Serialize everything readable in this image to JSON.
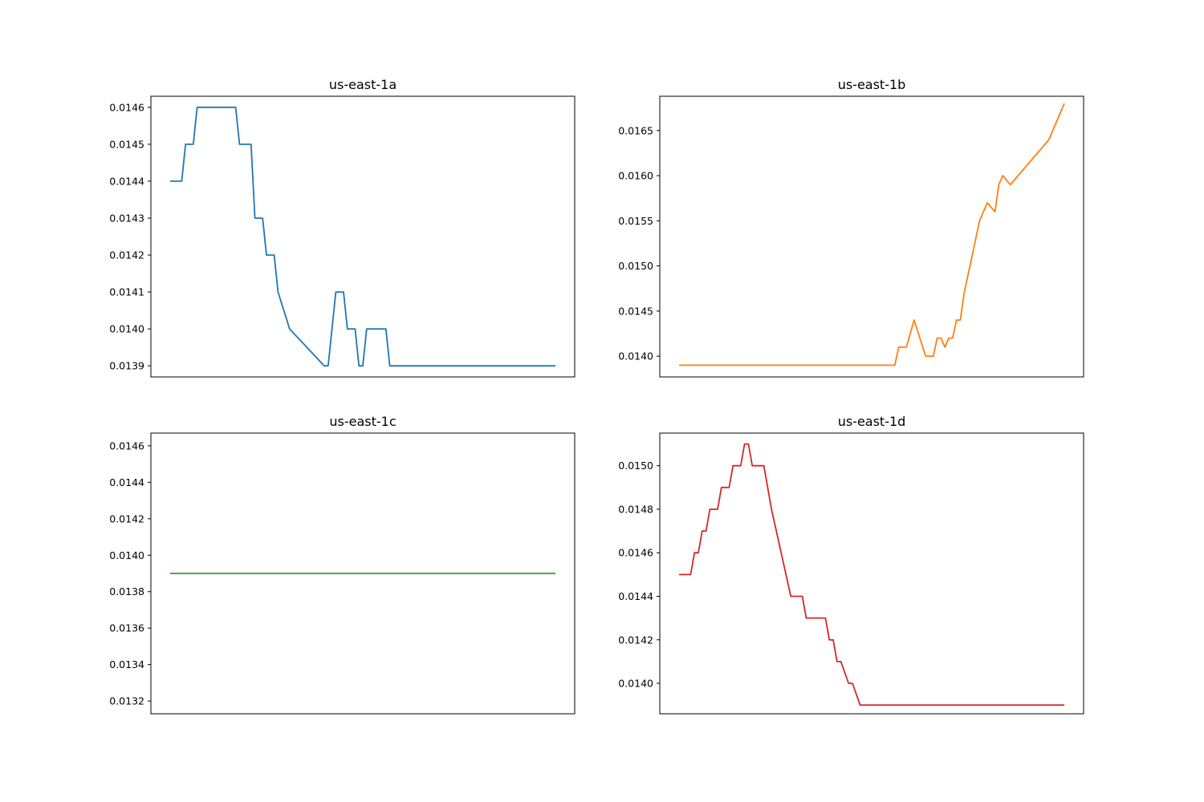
{
  "chart_data": [
    {
      "type": "line",
      "title": "us-east-1a",
      "xlabel": "",
      "ylabel": "",
      "x_ticks_visible": false,
      "ylim": [
        0.01387,
        0.01463
      ],
      "yticks": [
        "0.0139",
        "0.0140",
        "0.0141",
        "0.0142",
        "0.0143",
        "0.0144",
        "0.0145",
        "0.0146"
      ],
      "color": "#1f77b4",
      "series": [
        {
          "x": [
            0,
            3,
            4,
            6,
            7,
            11,
            14,
            17,
            18,
            19,
            20,
            21,
            22,
            24,
            25,
            27,
            28,
            31,
            40,
            41,
            42,
            43,
            45,
            46,
            48,
            49,
            50,
            51,
            56,
            57,
            65,
            76,
            100
          ],
          "values": [
            0.0144,
            0.0144,
            0.0145,
            0.0145,
            0.0146,
            0.0146,
            0.0146,
            0.0146,
            0.0145,
            0.0145,
            0.0145,
            0.0145,
            0.0143,
            0.0143,
            0.0142,
            0.0142,
            0.0141,
            0.014,
            0.0139,
            0.0139,
            0.014,
            0.0141,
            0.0141,
            0.014,
            0.014,
            0.0139,
            0.0139,
            0.014,
            0.014,
            0.0139,
            0.0139,
            0.0139,
            0.0139
          ]
        }
      ]
    },
    {
      "type": "line",
      "title": "us-east-1b",
      "xlabel": "",
      "ylabel": "",
      "x_ticks_visible": false,
      "ylim": [
        0.01377,
        0.01688
      ],
      "yticks": [
        "0.0140",
        "0.0145",
        "0.0150",
        "0.0155",
        "0.0160",
        "0.0165"
      ],
      "color": "#ff7f0e",
      "series": [
        {
          "x": [
            0,
            56,
            57,
            58,
            59,
            61,
            64,
            66,
            67,
            68,
            69,
            70,
            71,
            72,
            73,
            74,
            75,
            76,
            77,
            78,
            80,
            82,
            83,
            84,
            86,
            88,
            90,
            92,
            94,
            96,
            98,
            100
          ],
          "values": [
            0.0139,
            0.0139,
            0.0141,
            0.0141,
            0.0141,
            0.0144,
            0.014,
            0.014,
            0.0142,
            0.0142,
            0.0141,
            0.0142,
            0.0142,
            0.0144,
            0.0144,
            0.0147,
            0.0149,
            0.0151,
            0.0153,
            0.0155,
            0.0157,
            0.0156,
            0.0159,
            0.016,
            0.0159,
            0.016,
            0.0161,
            0.0162,
            0.0163,
            0.0164,
            0.0166,
            0.0168
          ]
        }
      ]
    },
    {
      "type": "line",
      "title": "us-east-1c",
      "xlabel": "",
      "ylabel": "",
      "x_ticks_visible": false,
      "ylim": [
        0.01313,
        0.01467
      ],
      "yticks": [
        "0.0132",
        "0.0134",
        "0.0136",
        "0.0138",
        "0.0140",
        "0.0142",
        "0.0144",
        "0.0146"
      ],
      "color": "#2ca02c",
      "series": [
        {
          "x": [
            0,
            100
          ],
          "values": [
            0.0139,
            0.0139
          ]
        }
      ]
    },
    {
      "type": "line",
      "title": "us-east-1d",
      "xlabel": "",
      "ylabel": "",
      "x_ticks_visible": false,
      "ylim": [
        0.01386,
        0.01515
      ],
      "yticks": [
        "0.0140",
        "0.0142",
        "0.0144",
        "0.0146",
        "0.0148",
        "0.0150"
      ],
      "color": "#d62728",
      "series": [
        {
          "x": [
            0,
            3,
            4,
            5,
            6,
            7,
            8,
            10,
            11,
            13,
            14,
            16,
            17,
            18,
            19,
            21,
            22,
            24,
            29,
            32,
            33,
            35,
            38,
            39,
            40,
            41,
            42,
            44,
            45,
            47,
            100
          ],
          "values": [
            0.0145,
            0.0145,
            0.0146,
            0.0146,
            0.0147,
            0.0147,
            0.0148,
            0.0148,
            0.0149,
            0.0149,
            0.015,
            0.015,
            0.0151,
            0.0151,
            0.015,
            0.015,
            0.015,
            0.0148,
            0.0144,
            0.0144,
            0.0143,
            0.0143,
            0.0143,
            0.0142,
            0.0142,
            0.0141,
            0.0141,
            0.014,
            0.014,
            0.0139,
            0.0139
          ]
        }
      ]
    }
  ]
}
